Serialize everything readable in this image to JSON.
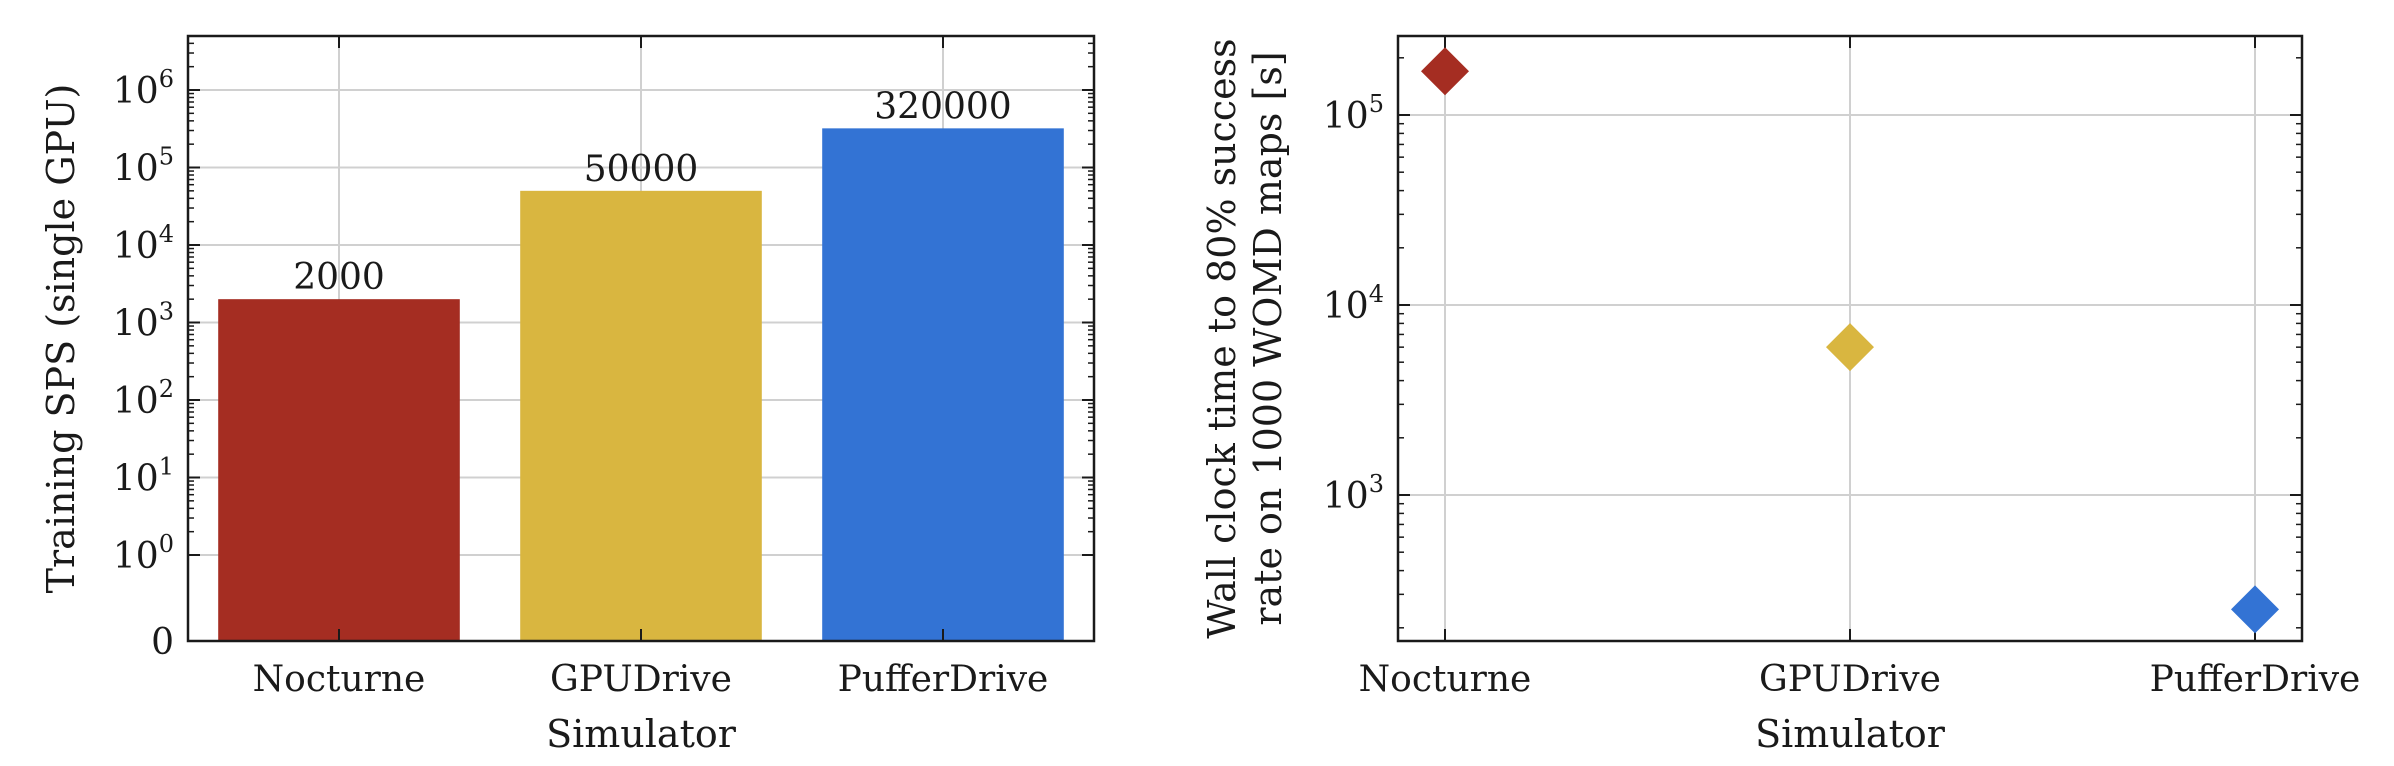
{
  "chart_data": [
    {
      "type": "bar",
      "title": "",
      "xlabel": "Simulator",
      "ylabel": "Training SPS (single GPU)",
      "y_scale": "symlog",
      "ylim": [
        0,
        5000000
      ],
      "grid": true,
      "categories": [
        "Nocturne",
        "GPUDrive",
        "PufferDrive"
      ],
      "values": [
        2000,
        50000,
        320000
      ],
      "data_labels": [
        "2000",
        "50000",
        "320000"
      ],
      "colors": [
        "#a52d22",
        "#d9b640",
        "#3373d4"
      ],
      "y_ticks": [
        {
          "value": 0,
          "base": "0",
          "exp": ""
        },
        {
          "value": 1,
          "base": "10",
          "exp": "0"
        },
        {
          "value": 10,
          "base": "10",
          "exp": "1"
        },
        {
          "value": 100,
          "base": "10",
          "exp": "2"
        },
        {
          "value": 1000,
          "base": "10",
          "exp": "3"
        },
        {
          "value": 10000,
          "base": "10",
          "exp": "4"
        },
        {
          "value": 100000,
          "base": "10",
          "exp": "5"
        },
        {
          "value": 1000000,
          "base": "10",
          "exp": "6"
        }
      ]
    },
    {
      "type": "scatter",
      "title": "",
      "xlabel": "Simulator",
      "ylabel": "Wall clock time to 80% success rate on 1000 WOMD maps [s]",
      "ylabel_lines": [
        "Wall clock time to 80% success",
        "rate on 1000 WOMD maps [s]"
      ],
      "y_scale": "log",
      "ylim": [
        170,
        260000
      ],
      "grid": true,
      "marker": "diamond",
      "categories": [
        "Nocturne",
        "GPUDrive",
        "PufferDrive"
      ],
      "values": [
        170000,
        6000,
        250
      ],
      "colors": [
        "#a52d22",
        "#d9b640",
        "#3373d4"
      ],
      "y_ticks": [
        {
          "value": 1000,
          "base": "10",
          "exp": "3"
        },
        {
          "value": 10000,
          "base": "10",
          "exp": "4"
        },
        {
          "value": 100000,
          "base": "10",
          "exp": "5"
        }
      ]
    }
  ]
}
